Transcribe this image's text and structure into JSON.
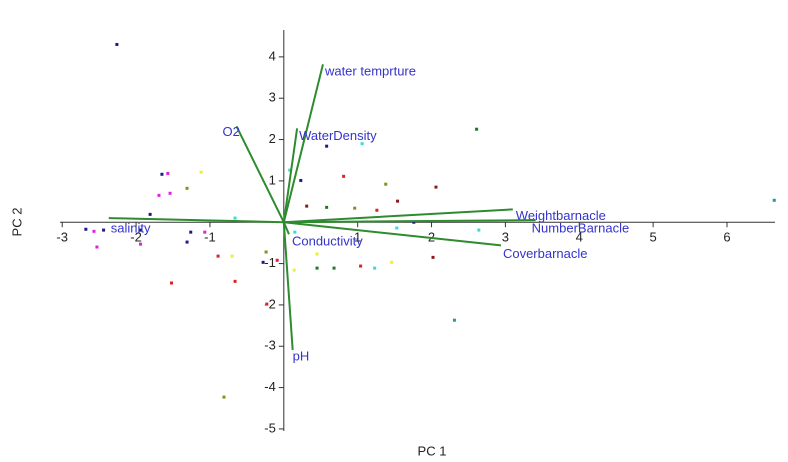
{
  "chart_data": {
    "type": "biplot",
    "x_label": "PC 1",
    "y_label": "PC 2",
    "xlim": [
      -3.03,
      6.65
    ],
    "ylim": [
      -5.05,
      4.65
    ],
    "xticks": [
      -3,
      -2,
      -1,
      1,
      2,
      3,
      4,
      5,
      6
    ],
    "yticks": [
      -5,
      -4,
      -3,
      -2,
      -1,
      1,
      2,
      3,
      4
    ],
    "vector_color": "#2e8b2e",
    "vector_label_color": "#3333cc",
    "loadings": [
      {
        "name": "water temprture",
        "x": 0.53,
        "y": 3.82
      },
      {
        "name": "WaterDensity",
        "x": 0.18,
        "y": 2.27
      },
      {
        "name": "O2",
        "x": -0.64,
        "y": 2.32
      },
      {
        "name": "Weightbarnacle",
        "x": 3.1,
        "y": 0.31
      },
      {
        "name": "NumberBarnacle",
        "x": 3.41,
        "y": 0.05
      },
      {
        "name": "Coverbarnacle",
        "x": 2.94,
        "y": -0.56
      },
      {
        "name": "salinity",
        "x": -2.37,
        "y": 0.1
      },
      {
        "name": "Conductivity",
        "x": 0.07,
        "y": -0.29
      },
      {
        "name": "pH",
        "x": 0.12,
        "y": -3.09
      }
    ],
    "points": {
      "x": [
        -2.26,
        2.61,
        6.64,
        0.58,
        1.06,
        0.81,
        1.38,
        2.06,
        0.23,
        0.08,
        -1.12,
        -1.31,
        -1.57,
        -1.65,
        -1.69,
        -1.54,
        -1.81,
        -0.66,
        0.31,
        0.58,
        0.96,
        1.26,
        1.54,
        1.76,
        1.53,
        -2.68,
        -2.57,
        -2.44,
        -1.94,
        -1.26,
        -1.07,
        -2.53,
        -1.94,
        -1.31,
        -0.89,
        -0.7,
        -0.24,
        -0.28,
        -0.09,
        0.15,
        0.45,
        0.45,
        0.68,
        1.04,
        1.23,
        1.46,
        2.02,
        2.64,
        0.14,
        -1.52,
        -0.66,
        -0.23,
        2.31,
        -0.81
      ],
      "y": [
        4.3,
        2.25,
        0.53,
        1.84,
        1.9,
        1.11,
        0.92,
        0.85,
        1.01,
        1.26,
        1.21,
        0.82,
        1.18,
        1.16,
        0.65,
        0.7,
        0.19,
        0.1,
        0.39,
        0.36,
        0.34,
        0.29,
        0.51,
        0,
        -0.14,
        -0.17,
        -0.22,
        -0.19,
        -0.19,
        -0.24,
        -0.24,
        -0.6,
        -0.53,
        -0.48,
        -0.82,
        -0.82,
        -0.72,
        -0.97,
        -0.92,
        -0.24,
        -0.77,
        -1.11,
        -1.11,
        -1.06,
        -1.11,
        -0.97,
        -0.85,
        -0.19,
        -1.16,
        -1.47,
        -1.43,
        -1.98,
        -2.37,
        -4.23
      ],
      "colors": [
        "#1a1a8c",
        "#1f7a1f",
        "#1f9a9a",
        "#1a1a8c",
        "#33dddd",
        "#dd2222",
        "#8c8c1a",
        "#8c1a1a",
        "#1a1a8c",
        "#33dddd",
        "#eeee33",
        "#8c8c1a",
        "#dd22dd",
        "#1a1a8c",
        "#dd22dd",
        "#dd22dd",
        "#1a1a8c",
        "#33dddd",
        "#8c1a1a",
        "#1f7a1f",
        "#8c8c1a",
        "#dd2222",
        "#8c1a1a",
        "#1a1a8c",
        "#33dddd",
        "#1a1a8c",
        "#dd22dd",
        "#1a1a8c",
        "#1a1a8c",
        "#1a1a8c",
        "#dd22dd",
        "#dd22dd",
        "#dd22dd",
        "#1a1a8c",
        "#dd2222",
        "#eeee33",
        "#8c8c1a",
        "#1a1a8c",
        "#dd2222",
        "#33dddd",
        "#eeee33",
        "#1f7a1f",
        "#1f7a1f",
        "#dd2222",
        "#33dddd",
        "#eeee33",
        "#8c1a1a",
        "#33dddd",
        "#eeee33",
        "#dd2222",
        "#dd2222",
        "#dd2222",
        "#1f9a9a",
        "#8c8c1a"
      ]
    }
  }
}
